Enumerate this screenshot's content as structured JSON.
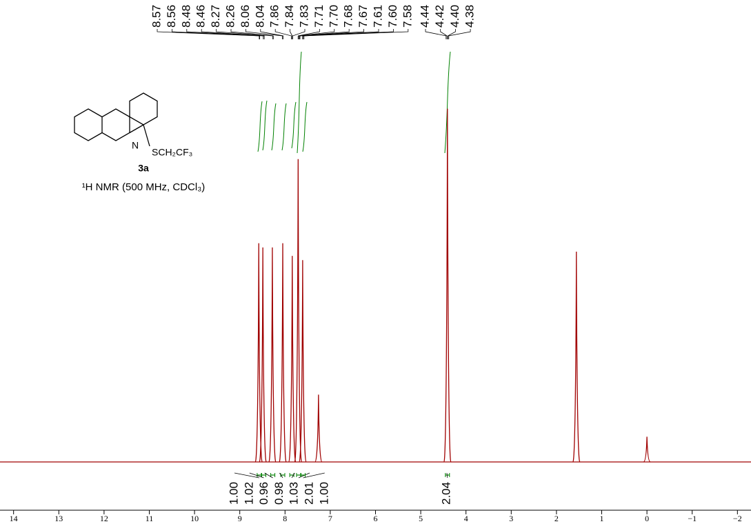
{
  "chart_data": {
    "type": "nmr",
    "x": [
      8.58,
      8.49,
      8.28,
      8.05,
      7.84,
      7.71,
      7.61,
      7.26,
      4.41,
      1.56,
      0.0
    ],
    "values": [
      52,
      51,
      51,
      52,
      49,
      72,
      48,
      16,
      84,
      50,
      6
    ],
    "color": "#a00000",
    "xlim": [
      14.3,
      -2.3
    ],
    "ylim": [
      0,
      100
    ],
    "xticks": [
      14,
      13,
      12,
      11,
      10,
      9,
      8,
      7,
      6,
      5,
      4,
      3,
      2,
      1,
      0,
      {
        "value": -1,
        "label": "−1"
      },
      {
        "value": -2,
        "label": "−2"
      }
    ],
    "peak_labels": [
      "8.57",
      "8.56",
      "8.48",
      "8.46",
      "8.27",
      "8.26",
      "8.06",
      "8.04",
      "7.86",
      "7.84",
      "7.83",
      "7.71",
      "7.70",
      "7.68",
      "7.67",
      "7.61",
      "7.60",
      "7.58",
      "4.44",
      "4.42",
      "4.40",
      "4.38"
    ],
    "integrals": {
      "x": [
        8.57,
        8.47,
        8.27,
        8.05,
        7.85,
        7.7,
        7.6,
        4.41
      ],
      "values": [
        1.0,
        1.02,
        0.96,
        0.98,
        1.03,
        2.01,
        1.0,
        2.04
      ],
      "value_labels": [
        "1.00",
        "1.02",
        "0.96",
        "0.98",
        "1.03",
        "2.01",
        "1.00",
        "2.04"
      ],
      "color": "#008000"
    }
  },
  "compound": {
    "label": "3a",
    "atom": "N",
    "substituent": "SCH₂CF₃",
    "caption": "¹H NMR (500 MHz, CDCl₃)"
  }
}
